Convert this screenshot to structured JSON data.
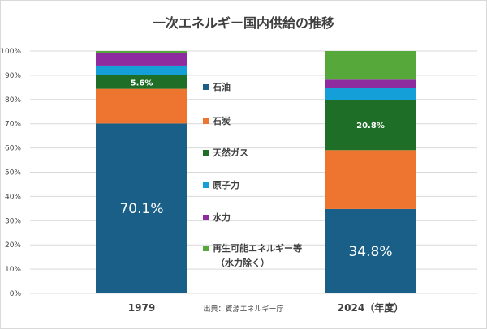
{
  "chart_data": {
    "type": "bar",
    "stacked": true,
    "title": "一次エネルギー国内供給の推移",
    "categories": [
      "1979",
      "2024（年度）"
    ],
    "ylim": [
      0,
      100
    ],
    "yticks": [
      "0%",
      "10%",
      "20%",
      "30%",
      "40%",
      "50%",
      "60%",
      "70%",
      "80%",
      "90%",
      "100%"
    ],
    "grid": true,
    "legend_position": "center",
    "series": [
      {
        "name": "石油",
        "color": "#1a5f87",
        "values": [
          70.1,
          34.8
        ]
      },
      {
        "name": "石炭",
        "color": "#ed7530",
        "values": [
          14.3,
          24.3
        ]
      },
      {
        "name": "天然ガス",
        "color": "#1f6e27",
        "values": [
          5.6,
          20.8
        ]
      },
      {
        "name": "原子力",
        "color": "#159fd8",
        "values": [
          4.0,
          5.0
        ]
      },
      {
        "name": "水力",
        "color": "#8e2b9f",
        "values": [
          5.0,
          3.3
        ]
      },
      {
        "name": "再生可能エネルギー等",
        "name_line2": "（水力除く）",
        "color": "#56a83a",
        "values": [
          1.0,
          11.8
        ]
      }
    ],
    "data_labels": [
      {
        "series": 0,
        "category": 0,
        "text": "70.1%",
        "style": "big"
      },
      {
        "series": 0,
        "category": 1,
        "text": "34.8%",
        "style": "big"
      },
      {
        "series": 2,
        "category": 0,
        "text": "5.6%",
        "style": "small"
      },
      {
        "series": 2,
        "category": 1,
        "text": "20.8%",
        "style": "small"
      }
    ],
    "source": "出典：資源エネルギー庁"
  }
}
